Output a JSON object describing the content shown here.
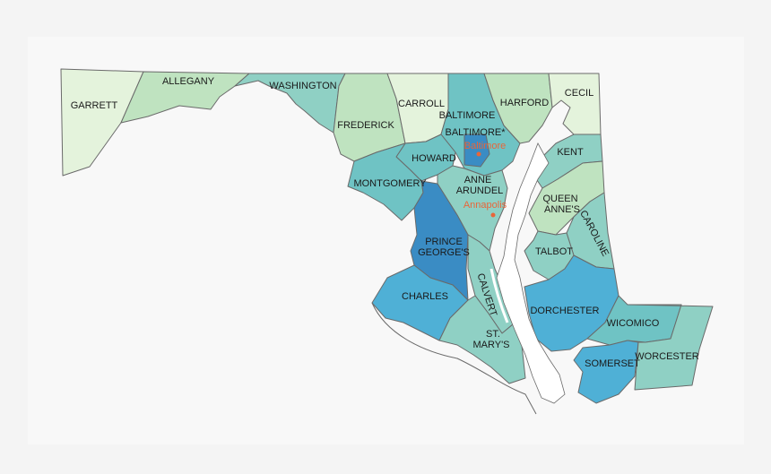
{
  "map": {
    "colors": {
      "lightest": "#e4f3dc",
      "light": "#bfe3c0",
      "mid": "#8fd0c4",
      "teal": "#6fc3c4",
      "blue": "#4fb0d6",
      "dark": "#3a8cc4",
      "water": "#ffffff",
      "city": "#e8663a"
    },
    "counties": {
      "garrett": "GARRETT",
      "allegany": "ALLEGANY",
      "washington": "WASHINGTON",
      "frederick": "FREDERICK",
      "carroll": "CARROLL",
      "baltimore": "BALTIMORE",
      "baltimore_city": "BALTIMORE*",
      "harford": "HARFORD",
      "cecil": "CECIL",
      "kent": "KENT",
      "howard": "HOWARD",
      "montgomery": "MONTGOMERY",
      "anne_arundel_1": "ANNE",
      "anne_arundel_2": "ARUNDEL",
      "queen_annes_1": "QUEEN",
      "queen_annes_2": "ANNE'S",
      "caroline": "CAROLINE",
      "talbot": "TALBOT",
      "prince_georges_1": "PRINCE",
      "prince_georges_2": "GEORGE'S",
      "calvert": "CALVERT",
      "charles": "CHARLES",
      "st_marys_1": "ST.",
      "st_marys_2": "MARY'S",
      "dorchester": "DORCHESTER",
      "wicomico": "WICOMICO",
      "somerset": "SOMERSET",
      "worcester": "WORCESTER"
    },
    "cities": {
      "baltimore": "Baltimore",
      "annapolis": "Annapolis"
    }
  }
}
